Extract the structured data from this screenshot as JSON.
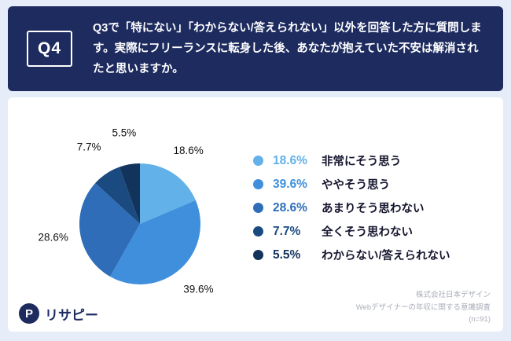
{
  "header": {
    "q_label": "Q4",
    "question": "Q3で「特にない」「わからない/答えられない」以外を回答した方に質問します。実際にフリーランスに転身した後、あなたが抱えていた不安は解消されたと思いますか。"
  },
  "chart_data": {
    "type": "pie",
    "start_angle": -90,
    "direction": "clockwise",
    "value_suffix": "%",
    "series": [
      {
        "label": "非常にそう思う",
        "value": 18.6,
        "color": "#62b1e8"
      },
      {
        "label": "ややそう思う",
        "value": 39.6,
        "color": "#3f8fdc"
      },
      {
        "label": "あまりそう思わない",
        "value": 28.6,
        "color": "#2f6db8"
      },
      {
        "label": "全くそう思わない",
        "value": 7.7,
        "color": "#1b4a80"
      },
      {
        "label": "わからない/答えられない",
        "value": 5.5,
        "color": "#12335c"
      }
    ]
  },
  "footer": {
    "source_lines": [
      "株式会社日本デザイン",
      "Webデザイナーの年収に関する意識調査",
      "(n=91)"
    ],
    "logo_text": "リサピー",
    "logo_mark": "P"
  }
}
